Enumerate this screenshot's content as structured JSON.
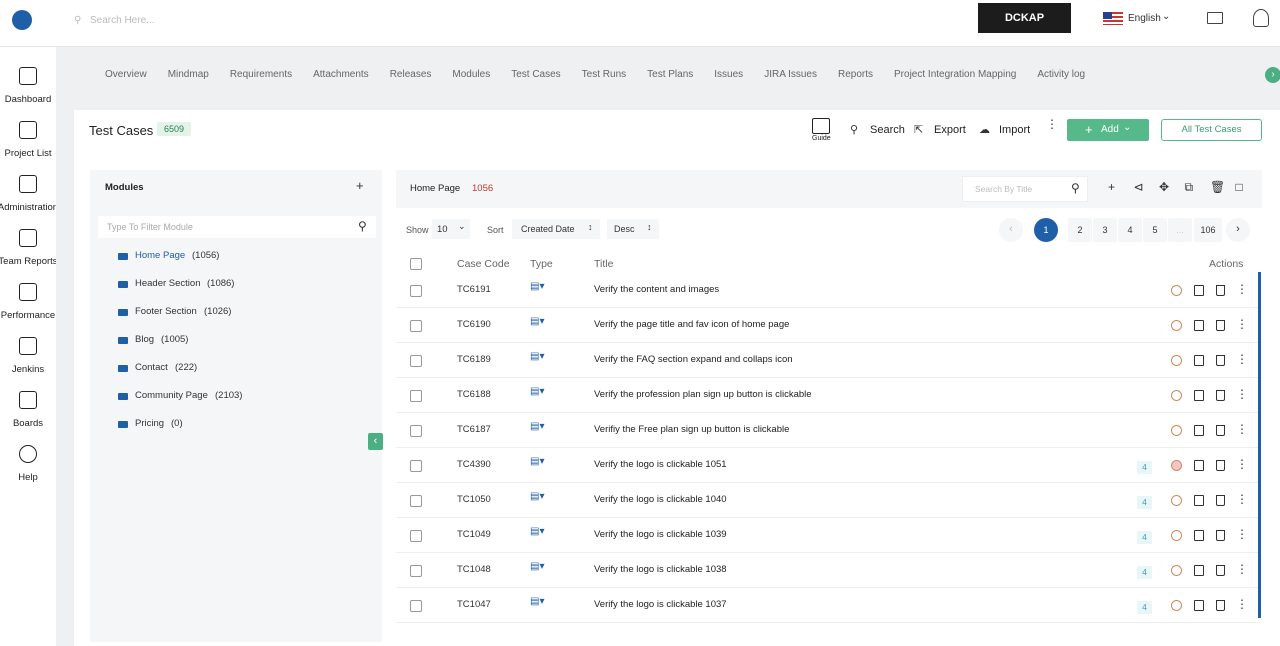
{
  "header": {
    "search_placeholder": "Search Here...",
    "brand": "DCKAP",
    "language": "English"
  },
  "sidebar": [
    "Dashboard",
    "Project List",
    "Administration",
    "Team Reports",
    "Performance",
    "Jenkins",
    "Boards",
    "Help"
  ],
  "tabs": [
    "Overview",
    "Mindmap",
    "Requirements",
    "Attachments",
    "Releases",
    "Modules",
    "Test Cases",
    "Test Runs",
    "Test Plans",
    "Issues",
    "JIRA Issues",
    "Reports",
    "Project Integration Mapping",
    "Activity log"
  ],
  "page": {
    "title": "Test Cases",
    "count": "6509",
    "guide": "Guide",
    "search": "Search",
    "export": "Export",
    "import": "Import",
    "add": "Add",
    "all": "All Test Cases"
  },
  "modules": {
    "title": "Modules",
    "filter_placeholder": "Type To Filter Module",
    "items": [
      {
        "name": "Home Page",
        "count": "(1056)"
      },
      {
        "name": "Header Section",
        "count": "(1086)"
      },
      {
        "name": "Footer Section",
        "count": "(1026)"
      },
      {
        "name": "Blog",
        "count": "(1005)"
      },
      {
        "name": "Contact",
        "count": "(222)"
      },
      {
        "name": "Community Page",
        "count": "(2103)"
      },
      {
        "name": "Pricing",
        "count": "(0)"
      }
    ]
  },
  "list": {
    "breadcrumb": "Home Page",
    "count": "1056",
    "search_placeholder": "Search By Title",
    "show_label": "Show",
    "show_value": "10",
    "sort_label": "Sort",
    "sort_value": "Created Date",
    "order": "Desc",
    "pages": [
      "1",
      "2",
      "3",
      "4",
      "5",
      "...",
      "106"
    ],
    "columns": [
      "Case Code",
      "Type",
      "Title",
      "Actions"
    ]
  },
  "table": {
    "rows": [
      {
        "code": "TC6191",
        "title": "Verify the content and images"
      },
      {
        "code": "TC6190",
        "title": "Verify the page title and fav icon of home page"
      },
      {
        "code": "TC6189",
        "title": "Verify the FAQ section expand and collaps icon"
      },
      {
        "code": "TC6188",
        "title": "Verify the profession plan sign up button is clickable"
      },
      {
        "code": "TC6187",
        "title": "Verifiy the Free plan sign up button is clickable"
      },
      {
        "code": "TC4390",
        "title": "Verify the logo is clickable 1051",
        "links": "4"
      },
      {
        "code": "TC1050",
        "title": "Verify the logo is clickable 1040",
        "links": "4"
      },
      {
        "code": "TC1049",
        "title": "Verify the logo is clickable 1039",
        "links": "4"
      },
      {
        "code": "TC1048",
        "title": "Verify the logo is clickable 1038",
        "links": "4"
      },
      {
        "code": "TC1047",
        "title": "Verify the logo is clickable 1037",
        "links": "4"
      }
    ]
  }
}
